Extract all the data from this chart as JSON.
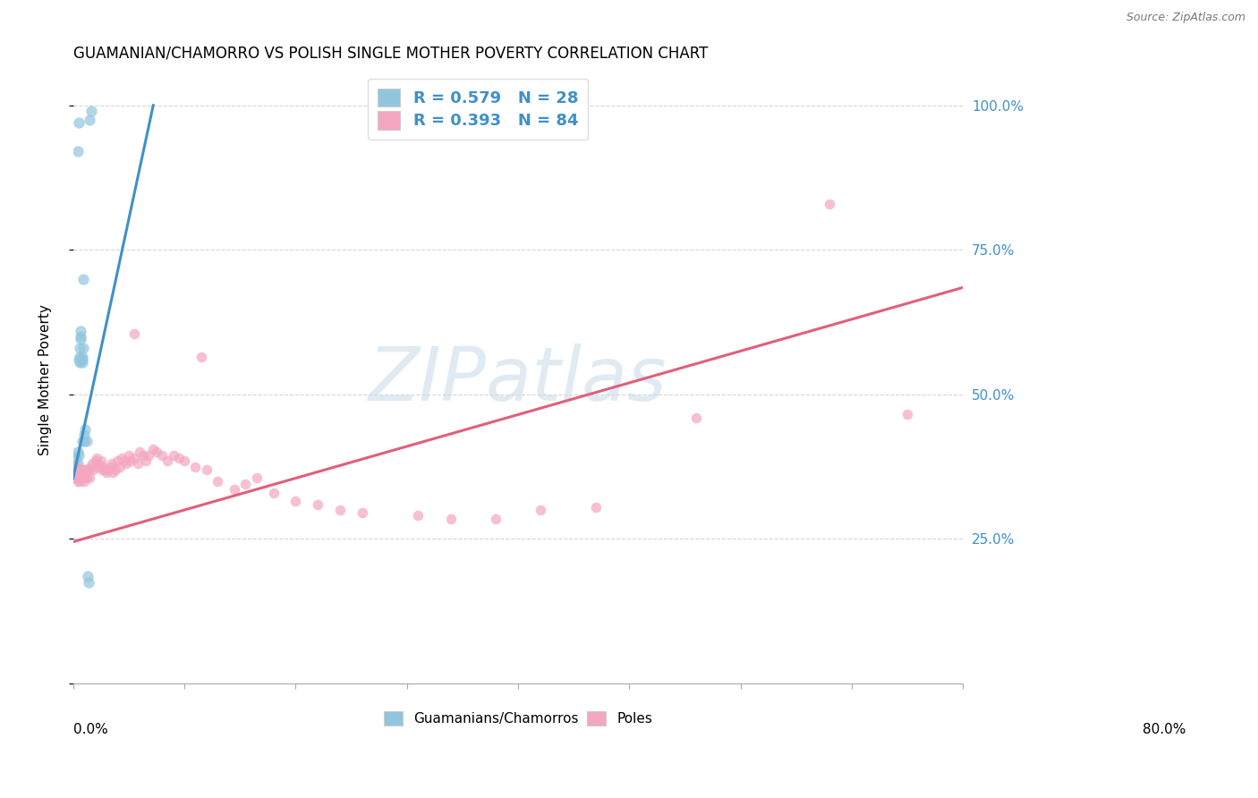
{
  "title": "GUAMANIAN/CHAMORRO VS POLISH SINGLE MOTHER POVERTY CORRELATION CHART",
  "source": "Source: ZipAtlas.com",
  "ylabel": "Single Mother Poverty",
  "xlim": [
    0.0,
    0.8
  ],
  "ylim": [
    0.0,
    1.05
  ],
  "r_blue": 0.579,
  "n_blue": 28,
  "r_pink": 0.393,
  "n_pink": 84,
  "legend_labels": [
    "Guamanians/Chamorros",
    "Poles"
  ],
  "blue_color": "#92c5de",
  "pink_color": "#f4a6c0",
  "blue_line_color": "#4090c8",
  "pink_line_color": "#e0607a",
  "grid_color": "#cccccc",
  "right_axis_color": "#4090c8",
  "title_fontsize": 12,
  "axis_label_fontsize": 11,
  "legend_fontsize": 13,
  "blue_trend_x0": 0.0,
  "blue_trend_y0": 0.355,
  "blue_trend_x1": 0.072,
  "blue_trend_y1": 1.0,
  "pink_trend_x0": 0.0,
  "pink_trend_y0": 0.245,
  "pink_trend_x1": 0.8,
  "pink_trend_y1": 0.685,
  "blue_x": [
    0.002,
    0.003,
    0.004,
    0.004,
    0.005,
    0.005,
    0.006,
    0.006,
    0.006,
    0.007,
    0.007,
    0.007,
    0.008,
    0.008,
    0.008,
    0.008,
    0.009,
    0.009,
    0.01,
    0.01,
    0.011,
    0.012,
    0.013,
    0.014,
    0.015,
    0.016,
    0.004,
    0.005
  ],
  "blue_y": [
    0.375,
    0.39,
    0.4,
    0.38,
    0.395,
    0.56,
    0.555,
    0.565,
    0.58,
    0.595,
    0.6,
    0.61,
    0.555,
    0.565,
    0.56,
    0.42,
    0.58,
    0.7,
    0.42,
    0.43,
    0.44,
    0.42,
    0.185,
    0.175,
    0.975,
    0.99,
    0.92,
    0.97
  ],
  "pink_x": [
    0.002,
    0.003,
    0.003,
    0.004,
    0.004,
    0.005,
    0.005,
    0.005,
    0.006,
    0.006,
    0.007,
    0.007,
    0.008,
    0.008,
    0.008,
    0.009,
    0.009,
    0.01,
    0.01,
    0.011,
    0.011,
    0.012,
    0.012,
    0.013,
    0.014,
    0.015,
    0.016,
    0.017,
    0.018,
    0.02,
    0.021,
    0.022,
    0.023,
    0.025,
    0.026,
    0.027,
    0.028,
    0.03,
    0.031,
    0.033,
    0.035,
    0.036,
    0.038,
    0.04,
    0.042,
    0.044,
    0.046,
    0.048,
    0.05,
    0.052,
    0.055,
    0.058,
    0.06,
    0.063,
    0.065,
    0.068,
    0.072,
    0.075,
    0.08,
    0.085,
    0.09,
    0.095,
    0.1,
    0.11,
    0.115,
    0.12,
    0.13,
    0.145,
    0.155,
    0.165,
    0.18,
    0.2,
    0.22,
    0.24,
    0.26,
    0.31,
    0.34,
    0.38,
    0.42,
    0.47,
    0.56,
    0.68,
    0.75,
    0.055
  ],
  "pink_y": [
    0.365,
    0.36,
    0.355,
    0.37,
    0.35,
    0.375,
    0.355,
    0.36,
    0.365,
    0.35,
    0.37,
    0.355,
    0.36,
    0.365,
    0.37,
    0.355,
    0.36,
    0.365,
    0.35,
    0.368,
    0.355,
    0.37,
    0.355,
    0.372,
    0.368,
    0.355,
    0.375,
    0.38,
    0.37,
    0.385,
    0.39,
    0.375,
    0.38,
    0.385,
    0.37,
    0.375,
    0.37,
    0.365,
    0.37,
    0.375,
    0.38,
    0.365,
    0.37,
    0.385,
    0.375,
    0.39,
    0.385,
    0.38,
    0.395,
    0.385,
    0.39,
    0.38,
    0.4,
    0.395,
    0.385,
    0.395,
    0.405,
    0.4,
    0.395,
    0.385,
    0.395,
    0.39,
    0.385,
    0.375,
    0.565,
    0.37,
    0.35,
    0.335,
    0.345,
    0.355,
    0.33,
    0.315,
    0.31,
    0.3,
    0.295,
    0.29,
    0.285,
    0.285,
    0.3,
    0.305,
    0.46,
    0.83,
    0.465,
    0.605
  ]
}
